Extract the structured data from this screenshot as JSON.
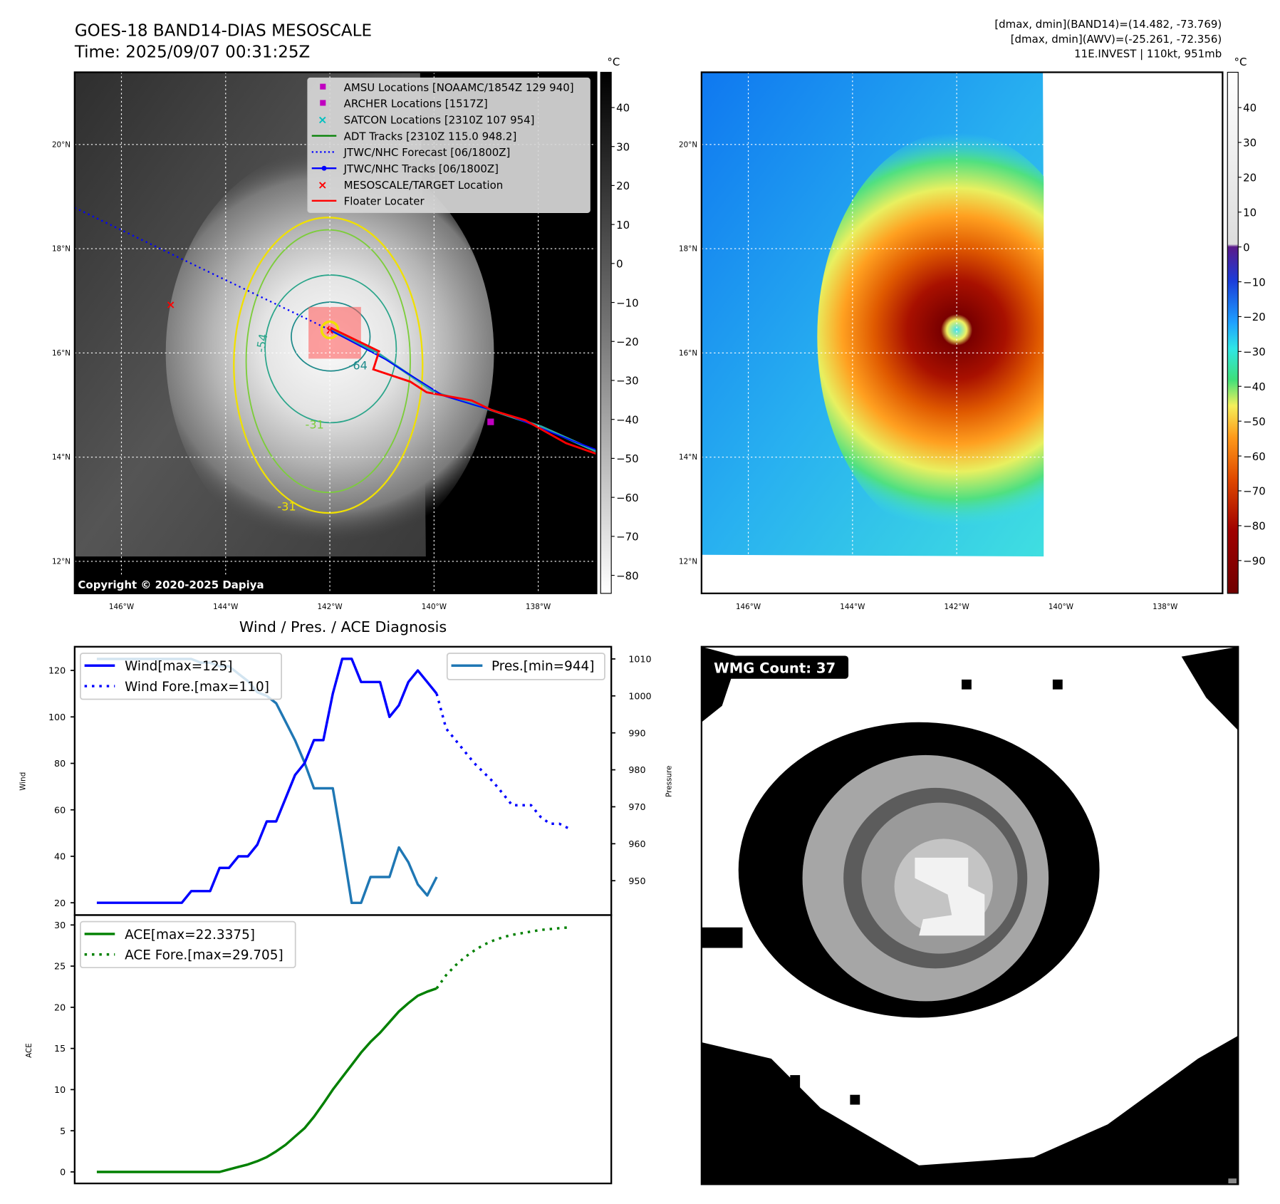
{
  "header": {
    "title": "GOES-18 BAND14-DIAS MESOSCALE",
    "time": "Time: 2025/09/07 00:31:25Z",
    "stats": [
      "[dmax, dmin](BAND14)=(14.482, -73.769)",
      "[dmax, dmin](AWV)=(-25.261, -72.356)",
      "11E.INVEST | 110kt, 951mb"
    ]
  },
  "map": {
    "lon_ticks": [
      "146°W",
      "144°W",
      "142°W",
      "140°W",
      "138°W"
    ],
    "lat_ticks": [
      "20°N",
      "18°N",
      "16°N",
      "14°N",
      "12°N"
    ],
    "copyright": "Copyright © 2020-2025 Dapiya",
    "contour_labels": [
      "-54",
      "-64",
      "-31",
      "-31"
    ],
    "legend": [
      {
        "label": "AMSU Locations [NOAAMC/1854Z 129 940]",
        "color": "#c000c0",
        "marker": "square"
      },
      {
        "label": "ARCHER Locations [1517Z]",
        "color": "#c000c0",
        "marker": "square"
      },
      {
        "label": "SATCON Locations [2310Z 107 954]",
        "color": "#00c0c0",
        "marker": "x"
      },
      {
        "label": "ADT Tracks [2310Z 115.0 948.2]",
        "color": "#008000",
        "marker": "line"
      },
      {
        "label": "JTWC/NHC Forecast [06/1800Z]",
        "color": "#0000ff",
        "marker": "dotted"
      },
      {
        "label": "JTWC/NHC Tracks [06/1800Z]",
        "color": "#0000ff",
        "marker": "line-dot"
      },
      {
        "label": "MESOSCALE/TARGET Location",
        "color": "#ff0000",
        "marker": "x"
      },
      {
        "label": "Floater Locater",
        "color": "#ff0000",
        "marker": "line"
      }
    ],
    "unit": "°C",
    "left_colorbar_ticks": [
      "40",
      "30",
      "20",
      "10",
      "0",
      "−10",
      "−20",
      "−30",
      "−40",
      "−50",
      "−60",
      "−70",
      "−80"
    ],
    "right_colorbar_ticks": [
      "40",
      "30",
      "20",
      "10",
      "0",
      "−10",
      "−20",
      "−30",
      "−40",
      "−50",
      "−60",
      "−70",
      "−80",
      "−90"
    ]
  },
  "wmg": {
    "label": "WMG Count: 37"
  },
  "chart_data": {
    "type": "line",
    "title": "Wind / Pres. / ACE Diagnosis",
    "x_unit": "6-hour step index",
    "wind": {
      "ylabel": "Wind",
      "ylim": [
        14.7,
        130.2
      ],
      "ticks": [
        20,
        40,
        60,
        80,
        100,
        120
      ],
      "series": [
        {
          "name": "Wind[max=125]",
          "color": "#0000ff",
          "style": "solid",
          "x0": 0,
          "values": [
            20,
            20,
            20,
            20,
            20,
            20,
            20,
            20,
            20,
            20,
            25,
            25,
            25,
            35,
            35,
            40,
            40,
            45,
            55,
            55,
            65,
            75,
            80,
            90,
            90,
            110,
            125,
            125,
            115,
            115,
            115,
            100,
            105,
            115,
            120,
            115,
            110
          ]
        },
        {
          "name": "Wind Fore.[max=110]",
          "color": "#0000ff",
          "style": "dotted",
          "x0": 36,
          "values": [
            110,
            95,
            90,
            85,
            80,
            76,
            72,
            67,
            62,
            62,
            62,
            57,
            54,
            54,
            52
          ]
        }
      ]
    },
    "pressure": {
      "ylabel": "Pressure",
      "ylim": [
        940.7,
        1013.3
      ],
      "ticks": [
        950,
        960,
        970,
        980,
        990,
        1000,
        1010
      ],
      "series": [
        {
          "name": "Pres.[min=944]",
          "color": "#1f77b4",
          "style": "solid",
          "x0": 0,
          "values": [
            1010,
            1010,
            1010,
            1010,
            1010,
            1010,
            1010,
            1010,
            1010,
            1010,
            1010,
            1009,
            1009,
            1008,
            1008,
            1006,
            1004,
            1001,
            1000,
            998,
            993,
            988,
            982,
            975,
            975,
            975,
            960,
            944,
            944,
            951,
            951,
            951,
            959,
            955,
            949,
            946,
            951
          ]
        }
      ]
    },
    "ace": {
      "ylabel": "ACE",
      "ylim": [
        -1.4,
        31.2
      ],
      "ticks": [
        0,
        5,
        10,
        15,
        20,
        25,
        30
      ],
      "series": [
        {
          "name": "ACE[max=22.3375]",
          "color": "#008000",
          "style": "solid",
          "x0": 0,
          "values": [
            0,
            0,
            0,
            0,
            0,
            0,
            0,
            0,
            0,
            0,
            0,
            0,
            0,
            0,
            0.3,
            0.6,
            0.9,
            1.3,
            1.8,
            2.5,
            3.3,
            4.3,
            5.3,
            6.7,
            8.3,
            10,
            11.5,
            13,
            14.5,
            15.8,
            16.9,
            18.2,
            19.5,
            20.5,
            21.4,
            21.9,
            22.3
          ]
        },
        {
          "name": "ACE Fore.[max=29.705]",
          "color": "#008000",
          "style": "dotted",
          "x0": 36,
          "values": [
            22.3,
            23.9,
            25.1,
            26.1,
            26.9,
            27.6,
            28.1,
            28.5,
            28.8,
            29.0,
            29.2,
            29.4,
            29.5,
            29.6,
            29.7
          ]
        }
      ]
    },
    "xlim": [
      -2.35,
      54.5
    ]
  }
}
